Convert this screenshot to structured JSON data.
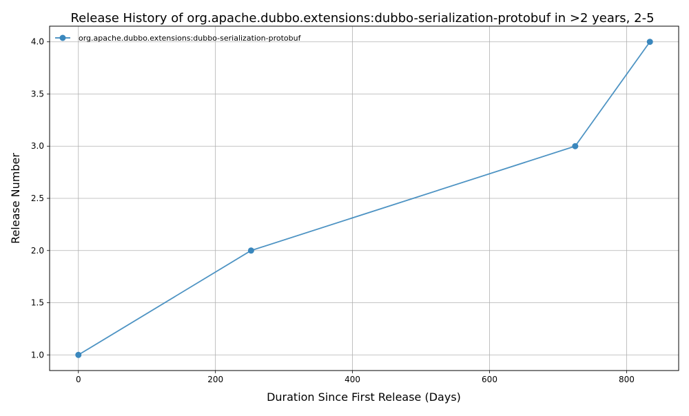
{
  "chart_data": {
    "type": "line",
    "title": "Release History of org.apache.dubbo.extensions:dubbo-serialization-protobuf in >2 years, 2-5",
    "xlabel": "Duration Since First Release (Days)",
    "ylabel": "Release Number",
    "xlim": [
      -42,
      876
    ],
    "ylim": [
      0.85,
      4.15
    ],
    "xticks": [
      0,
      200,
      400,
      600,
      800
    ],
    "xtick_labels": [
      "0",
      "200",
      "400",
      "600",
      "800"
    ],
    "yticks": [
      1.0,
      1.5,
      2.0,
      2.5,
      3.0,
      3.5,
      4.0
    ],
    "ytick_labels": [
      "1.0",
      "1.5",
      "2.0",
      "2.5",
      "3.0",
      "3.5",
      "4.0"
    ],
    "grid": true,
    "legend_position": "top-left",
    "series": [
      {
        "name": "org.apache.dubbo.extensions:dubbo-serialization-protobuf",
        "color": "#3a87bd",
        "x": [
          0,
          252,
          725,
          834
        ],
        "y": [
          1,
          2,
          3,
          4
        ]
      }
    ]
  }
}
